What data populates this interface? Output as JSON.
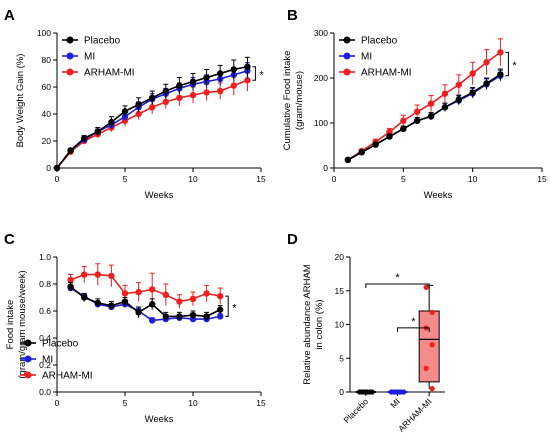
{
  "colors": {
    "Placebo": "#000000",
    "MI": "#1f1fe0",
    "ARHAM-MI": "#f01f1f",
    "box_fill": "#f48a8a"
  },
  "chart_data": [
    {
      "panel": "A",
      "type": "line",
      "xlabel": "Weeks",
      "ylabel": "Body Weight Gain (%)",
      "xlim": [
        0,
        15
      ],
      "ylim": [
        0,
        100
      ],
      "xticks": [
        0,
        5,
        10,
        15
      ],
      "yticks": [
        0,
        20,
        40,
        60,
        80,
        100
      ],
      "legend": "top-left",
      "legend_entries": [
        "Placebo",
        "MI",
        "ARHAM-MI"
      ],
      "significance": "*",
      "x": [
        0,
        1,
        2,
        3,
        4,
        5,
        6,
        7,
        8,
        9,
        10,
        11,
        12,
        13,
        14
      ],
      "series": [
        {
          "name": "Placebo",
          "values": [
            0,
            13,
            22,
            27,
            34,
            42,
            47,
            52,
            57,
            61,
            64,
            67,
            70,
            73,
            75
          ],
          "err": [
            0,
            1,
            2,
            3,
            4,
            4,
            5,
            5,
            5,
            6,
            6,
            6,
            6,
            7,
            7
          ]
        },
        {
          "name": "MI",
          "values": [
            0,
            13,
            21,
            27,
            32,
            38,
            45,
            51,
            55,
            59,
            62,
            64,
            66,
            69,
            72
          ],
          "err": [
            0,
            1,
            2,
            2,
            3,
            3,
            4,
            4,
            4,
            4,
            5,
            5,
            5,
            5,
            6
          ]
        },
        {
          "name": "ARHAM-MI",
          "values": [
            0,
            12,
            20,
            25,
            30,
            35,
            40,
            45,
            49,
            52,
            54,
            56,
            57,
            61,
            65
          ],
          "err": [
            0,
            1,
            2,
            2,
            3,
            4,
            4,
            5,
            5,
            6,
            6,
            6,
            6,
            7,
            8
          ]
        }
      ]
    },
    {
      "panel": "B",
      "type": "line",
      "xlabel": "Weeks",
      "ylabel": "Cumulative Food intake (gram/mouse)",
      "xlim": [
        0,
        15
      ],
      "ylim": [
        0,
        300
      ],
      "xticks": [
        0,
        5,
        10,
        15
      ],
      "yticks": [
        0,
        100,
        200,
        300
      ],
      "legend": "top-left",
      "legend_entries": [
        "Placebo",
        "MI",
        "ARHAM-MI"
      ],
      "significance": "*",
      "x": [
        1,
        2,
        3,
        4,
        5,
        6,
        7,
        8,
        9,
        10,
        11,
        12
      ],
      "series": [
        {
          "name": "Placebo",
          "values": [
            18,
            35,
            52,
            70,
            87,
            105,
            115,
            135,
            152,
            168,
            188,
            208
          ],
          "err": [
            2,
            3,
            4,
            5,
            6,
            7,
            8,
            9,
            10,
            11,
            12,
            12
          ]
        },
        {
          "name": "MI",
          "values": [
            18,
            35,
            52,
            70,
            87,
            105,
            115,
            135,
            150,
            166,
            186,
            205
          ],
          "err": [
            2,
            3,
            4,
            5,
            6,
            7,
            8,
            9,
            10,
            11,
            12,
            12
          ]
        },
        {
          "name": "ARHAM-MI",
          "values": [
            18,
            38,
            58,
            80,
            105,
            125,
            143,
            165,
            185,
            210,
            235,
            257
          ],
          "err": [
            2,
            4,
            6,
            8,
            12,
            15,
            18,
            20,
            22,
            25,
            28,
            30
          ]
        }
      ]
    },
    {
      "panel": "C",
      "type": "line",
      "xlabel": "Weeks",
      "ylabel": "Food intake (gram/gram mouse/week)",
      "xlim": [
        0,
        15
      ],
      "ylim": [
        0.0,
        1.0
      ],
      "xticks": [
        0,
        5,
        10,
        15
      ],
      "yticks": [
        0.0,
        0.2,
        0.4,
        0.6,
        0.8,
        1.0
      ],
      "yticklabels": [
        "0.0",
        "0.2",
        "0.4",
        "0.6",
        "0.8",
        "1.0"
      ],
      "legend": "bottom-left",
      "legend_entries": [
        "Placebo",
        "MI",
        "ARHAM-MI"
      ],
      "significance": "*",
      "x": [
        1,
        2,
        3,
        4,
        5,
        6,
        7,
        8,
        9,
        10,
        11,
        12
      ],
      "series": [
        {
          "name": "Placebo",
          "values": [
            0.78,
            0.7,
            0.66,
            0.64,
            0.67,
            0.59,
            0.65,
            0.56,
            0.56,
            0.57,
            0.56,
            0.61
          ],
          "err": [
            0.03,
            0.03,
            0.03,
            0.03,
            0.03,
            0.04,
            0.04,
            0.03,
            0.03,
            0.03,
            0.03,
            0.03
          ]
        },
        {
          "name": "MI",
          "values": [
            0.77,
            0.71,
            0.65,
            0.63,
            0.65,
            0.6,
            0.53,
            0.54,
            0.55,
            0.54,
            0.54,
            0.56
          ],
          "err": [
            0.02,
            0.02,
            0.02,
            0.02,
            0.02,
            0.02,
            0.02,
            0.02,
            0.02,
            0.02,
            0.02,
            0.02
          ]
        },
        {
          "name": "ARHAM-MI",
          "values": [
            0.83,
            0.87,
            0.87,
            0.86,
            0.73,
            0.74,
            0.76,
            0.72,
            0.67,
            0.69,
            0.73,
            0.71
          ],
          "err": [
            0.04,
            0.06,
            0.08,
            0.08,
            0.06,
            0.07,
            0.12,
            0.08,
            0.05,
            0.05,
            0.06,
            0.06
          ]
        }
      ]
    },
    {
      "panel": "D",
      "type": "box",
      "ylabel": "Relative abundance ARHAM in colon (%)",
      "ylim": [
        0,
        20
      ],
      "yticks": [
        0,
        5,
        10,
        15,
        20
      ],
      "categories": [
        "Placebo",
        "MI",
        "ARHAM-MI"
      ],
      "significance": [
        {
          "from": "Placebo",
          "to": "ARHAM-MI",
          "label": "*"
        },
        {
          "from": "MI",
          "to": "ARHAM-MI",
          "label": "*"
        }
      ],
      "boxes": [
        {
          "name": "Placebo",
          "min": 0,
          "q1": 0,
          "median": 0,
          "q3": 0,
          "max": 0,
          "points": [
            0,
            0,
            0,
            0,
            0,
            0
          ]
        },
        {
          "name": "MI",
          "min": 0,
          "q1": 0,
          "median": 0,
          "q3": 0,
          "max": 0,
          "points": [
            0,
            0,
            0,
            0,
            0,
            0
          ]
        },
        {
          "name": "ARHAM-MI",
          "min": 0.5,
          "q1": 1.5,
          "median": 7.8,
          "q3": 12.0,
          "max": 15.8,
          "points": [
            15.5,
            11.8,
            9.5,
            7.0,
            3.5,
            0.5
          ]
        }
      ]
    }
  ]
}
